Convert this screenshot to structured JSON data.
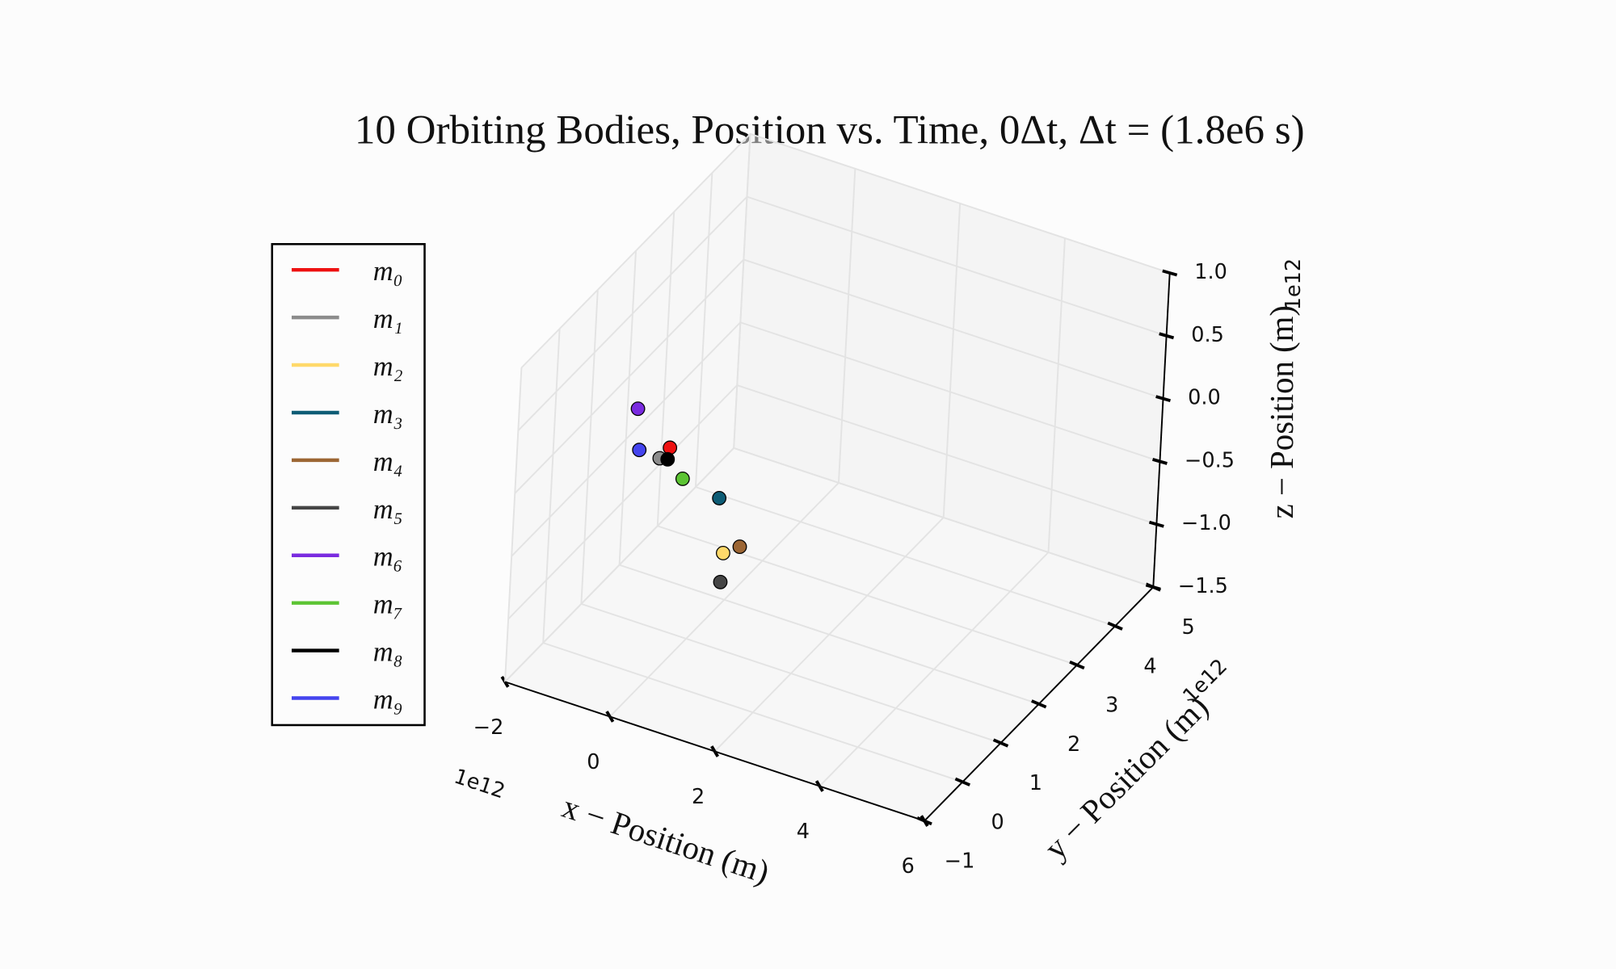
{
  "chart_data": {
    "type": "scatter3d",
    "title": "10 Orbiting Bodies,  Position vs.  Time,  0Δt,  Δt = (1.8e6 s)",
    "xlabel": "x − Position (m)",
    "ylabel": "y − Position (m)",
    "zlabel": "z − Position (m)",
    "xoffset": "1e12",
    "yoffset": "1e12",
    "zoffset": "1e12",
    "xlim": [
      -2,
      6
    ],
    "ylim": [
      -1,
      5
    ],
    "zlim": [
      -1.5,
      1
    ],
    "xticks": [
      {
        "value": -2,
        "label": "−2"
      },
      0,
      2,
      4,
      6
    ],
    "yticks": [
      {
        "value": -1,
        "label": "−1"
      },
      0,
      1,
      2,
      3,
      4,
      5
    ],
    "zticks": [
      {
        "value": -1.5,
        "label": "−1.5"
      },
      {
        "value": -1,
        "label": "−1.0"
      },
      {
        "value": -0.5,
        "label": "−0.5"
      },
      {
        "value": 0,
        "label": "0.0"
      },
      {
        "value": 0.5,
        "label": "0.5"
      },
      {
        "value": 1,
        "label": "1.0"
      }
    ],
    "grid": true,
    "legend": "left",
    "series": [
      {
        "name": "m₀",
        "color": "#ee1111",
        "x": -0.41,
        "y": 0.88,
        "z": 0
      },
      {
        "name": "m₁",
        "color": "#8c8c8c",
        "x": -0.41,
        "y": 0.61,
        "z": 0
      },
      {
        "name": "m₂",
        "color": "#ffd96a",
        "x": 1.84,
        "y": -0.82,
        "z": 0
      },
      {
        "name": "m₃",
        "color": "#0d5c75",
        "x": 1.01,
        "y": 0.22,
        "z": 0
      },
      {
        "name": "m₄",
        "color": "#9c6634",
        "x": 1.99,
        "y": -0.59,
        "z": 0
      },
      {
        "name": "m₅",
        "color": "#454545",
        "x": 1.37,
        "y": -0.16,
        "z": -0.5
      },
      {
        "name": "m₆",
        "color": "#7a2be0",
        "x": -1.42,
        "y": 1.43,
        "z": 0
      },
      {
        "name": "m₇",
        "color": "#5cc433",
        "x": 0.21,
        "y": 0.36,
        "z": 0
      },
      {
        "name": "m₈",
        "color": "#000000",
        "x": -0.28,
        "y": 0.64,
        "z": 0
      },
      {
        "name": "m₉",
        "color": "#4444ee",
        "x": -0.82,
        "y": 0.64,
        "z": 0
      }
    ]
  }
}
